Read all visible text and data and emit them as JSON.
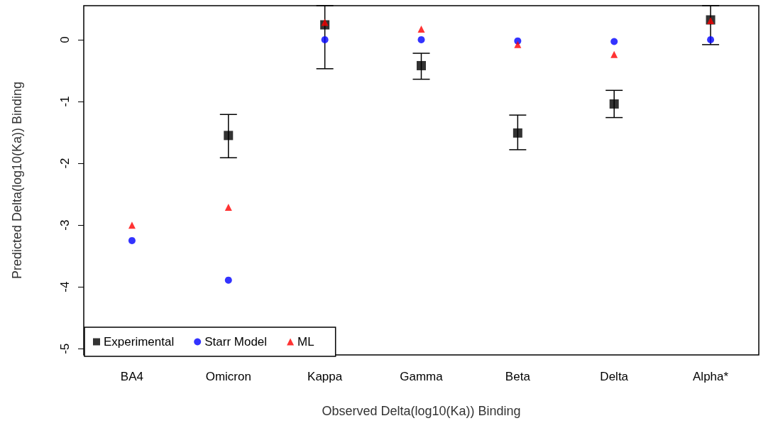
{
  "chart_data": {
    "type": "scatter",
    "xlabel": "Observed Delta(log10(Ka)) Binding",
    "ylabel": "Predicted Delta(log10(Ka)) Binding",
    "categories": [
      "BA4",
      "Omicron",
      "Kappa",
      "Gamma",
      "Beta",
      "Delta",
      "Alpha*"
    ],
    "ylim": [
      -5.1,
      0.55
    ],
    "yticks": [
      -5,
      -4,
      -3,
      -2,
      -1,
      0
    ],
    "grid": false,
    "legend": "bottom left",
    "series": [
      {
        "name": "Experimental",
        "color": "#000000",
        "marker": "square",
        "values": [
          null,
          -1.55,
          0.24,
          -0.42,
          -1.51,
          -1.04,
          0.32
        ],
        "errors": [
          null,
          [
            -1.91,
            -1.21
          ],
          [
            -0.47,
            0.55
          ],
          [
            -0.64,
            -0.22
          ],
          [
            -1.78,
            -1.22
          ],
          [
            -1.26,
            -0.82
          ],
          [
            -0.08,
            0.55
          ]
        ]
      },
      {
        "name": "Starr Model",
        "color": "#0000ff",
        "marker": "circle",
        "values": [
          -3.25,
          -3.89,
          0,
          0,
          -0.02,
          -0.03,
          0
        ]
      },
      {
        "name": "ML",
        "color": "#ff0000",
        "marker": "triangle",
        "values": [
          -3.0,
          -2.71,
          0.28,
          0.17,
          -0.08,
          -0.24,
          0.31
        ]
      }
    ]
  }
}
